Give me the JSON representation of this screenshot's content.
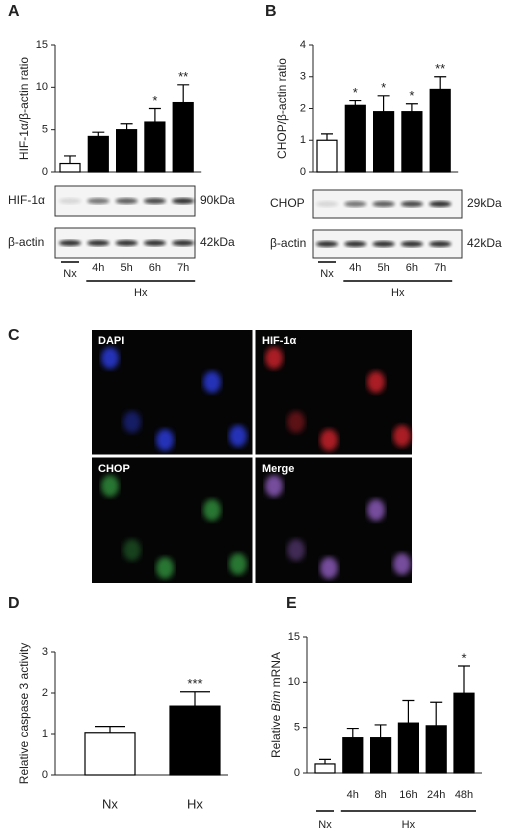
{
  "chart_data": [
    {
      "type": "bar",
      "panel": "A",
      "ylabel": [
        "HIF-1α/β-actin ratio"
      ],
      "categories": [
        "Nx",
        "4h",
        "5h",
        "6h",
        "7h"
      ],
      "group_label": "Hx",
      "values": [
        1.0,
        4.2,
        5.0,
        5.9,
        8.2
      ],
      "errors": [
        0.9,
        0.5,
        0.7,
        1.6,
        2.1
      ],
      "annotations": [
        null,
        null,
        null,
        "*",
        "**"
      ],
      "colors": [
        "#ffffff",
        "#000000",
        "#000000",
        "#000000",
        "#000000"
      ],
      "ylim": [
        0,
        15
      ],
      "yticks": [
        0,
        5,
        10,
        15
      ],
      "blot": [
        {
          "label": "HIF-1α",
          "size": "90kDa"
        },
        {
          "label": "β-actin",
          "size": "42kDa"
        }
      ]
    },
    {
      "type": "bar",
      "panel": "B",
      "ylabel": [
        "CHOP/β-actin ratio"
      ],
      "categories": [
        "Nx",
        "4h",
        "5h",
        "6h",
        "7h"
      ],
      "group_label": "Hx",
      "values": [
        1.0,
        2.1,
        1.9,
        1.9,
        2.6
      ],
      "errors": [
        0.2,
        0.15,
        0.5,
        0.25,
        0.4
      ],
      "annotations": [
        null,
        "*",
        "*",
        "*",
        "**"
      ],
      "colors": [
        "#ffffff",
        "#000000",
        "#000000",
        "#000000",
        "#000000"
      ],
      "ylim": [
        0,
        4
      ],
      "yticks": [
        0,
        1,
        2,
        3,
        4
      ],
      "blot": [
        {
          "label": "CHOP",
          "size": "29kDa"
        },
        {
          "label": "β-actin",
          "size": "42kDa"
        }
      ]
    },
    {
      "type": "bar",
      "panel": "D",
      "ylabel": [
        "Relative caspase 3 activity"
      ],
      "categories": [
        "Nx",
        "Hx"
      ],
      "values": [
        1.03,
        1.68
      ],
      "errors": [
        0.15,
        0.35
      ],
      "annotations": [
        null,
        "***"
      ],
      "colors": [
        "#ffffff",
        "#000000"
      ],
      "ylim": [
        0,
        3
      ],
      "yticks": [
        0,
        1,
        2,
        3
      ]
    },
    {
      "type": "bar",
      "panel": "E",
      "ylabel": [
        "Relative ",
        "Bim",
        " mRNA"
      ],
      "italic_part": 1,
      "categories": [
        "Nx",
        "4h",
        "8h",
        "16h",
        "24h",
        "48h"
      ],
      "group_label": "Hx",
      "values": [
        1.0,
        3.9,
        3.9,
        5.5,
        5.2,
        8.8
      ],
      "errors": [
        0.5,
        1.0,
        1.4,
        2.5,
        2.6,
        3.0
      ],
      "annotations": [
        null,
        null,
        null,
        null,
        null,
        "*"
      ],
      "colors": [
        "#ffffff",
        "#000000",
        "#000000",
        "#000000",
        "#000000",
        "#000000"
      ],
      "ylim": [
        0,
        15
      ],
      "yticks": [
        0,
        5,
        10,
        15
      ]
    }
  ],
  "panel_c": {
    "label": "C",
    "channels": [
      "DAPI",
      "HIF-1α",
      "CHOP",
      "Merge"
    ]
  }
}
